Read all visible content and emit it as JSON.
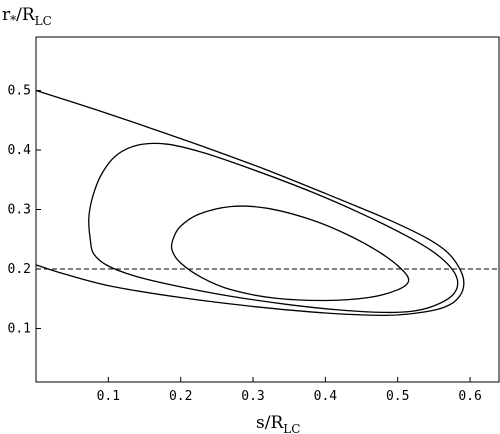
{
  "chart_data": {
    "type": "line",
    "xlabel": {
      "main": "s/R",
      "sub": "LC"
    },
    "ylabel": {
      "main": "r",
      "star": "*",
      "slash": "/R",
      "sub": "LC"
    },
    "xlim": [
      0,
      0.64
    ],
    "ylim": [
      0.01,
      0.59
    ],
    "x_ticks": [
      0.1,
      0.2,
      0.3,
      0.4,
      0.5,
      0.6
    ],
    "x_tick_labels": [
      "0.1",
      "0.2",
      "0.3",
      "0.4",
      "0.5",
      "0.6"
    ],
    "y_ticks": [
      0.1,
      0.2,
      0.3,
      0.4,
      0.5
    ],
    "y_tick_labels": [
      "0.1",
      "0.2",
      "0.3",
      "0.4",
      "0.5"
    ],
    "grid": false,
    "frame": true,
    "reference_line": {
      "y": 0.2,
      "style": "dashed"
    },
    "series": [
      {
        "closed": false,
        "points": [
          [
            0.0,
            0.5
          ],
          [
            0.08,
            0.469
          ],
          [
            0.16,
            0.436
          ],
          [
            0.24,
            0.402
          ],
          [
            0.32,
            0.366
          ],
          [
            0.4,
            0.327
          ],
          [
            0.46,
            0.297
          ],
          [
            0.5,
            0.276
          ],
          [
            0.54,
            0.252
          ],
          [
            0.565,
            0.232
          ],
          [
            0.58,
            0.212
          ],
          [
            0.59,
            0.188
          ],
          [
            0.591,
            0.17
          ],
          [
            0.586,
            0.155
          ],
          [
            0.575,
            0.142
          ],
          [
            0.555,
            0.132
          ],
          [
            0.52,
            0.125
          ],
          [
            0.48,
            0.122
          ],
          [
            0.4,
            0.126
          ],
          [
            0.3,
            0.137
          ],
          [
            0.2,
            0.152
          ],
          [
            0.1,
            0.172
          ],
          [
            0.03,
            0.195
          ],
          [
            0.0,
            0.207
          ]
        ]
      },
      {
        "closed": true,
        "points": [
          [
            0.075,
            0.25
          ],
          [
            0.073,
            0.285
          ],
          [
            0.078,
            0.32
          ],
          [
            0.09,
            0.358
          ],
          [
            0.11,
            0.39
          ],
          [
            0.14,
            0.408
          ],
          [
            0.18,
            0.41
          ],
          [
            0.23,
            0.396
          ],
          [
            0.3,
            0.367
          ],
          [
            0.38,
            0.33
          ],
          [
            0.45,
            0.293
          ],
          [
            0.51,
            0.257
          ],
          [
            0.55,
            0.228
          ],
          [
            0.575,
            0.2
          ],
          [
            0.583,
            0.176
          ],
          [
            0.575,
            0.155
          ],
          [
            0.55,
            0.138
          ],
          [
            0.52,
            0.129
          ],
          [
            0.48,
            0.127
          ],
          [
            0.42,
            0.131
          ],
          [
            0.35,
            0.14
          ],
          [
            0.27,
            0.154
          ],
          [
            0.2,
            0.17
          ],
          [
            0.14,
            0.187
          ],
          [
            0.1,
            0.205
          ],
          [
            0.08,
            0.225
          ]
        ]
      },
      {
        "closed": true,
        "points": [
          [
            0.19,
            0.252
          ],
          [
            0.2,
            0.272
          ],
          [
            0.225,
            0.292
          ],
          [
            0.27,
            0.305
          ],
          [
            0.32,
            0.302
          ],
          [
            0.38,
            0.283
          ],
          [
            0.43,
            0.258
          ],
          [
            0.475,
            0.228
          ],
          [
            0.505,
            0.2
          ],
          [
            0.515,
            0.18
          ],
          [
            0.5,
            0.165
          ],
          [
            0.46,
            0.152
          ],
          [
            0.4,
            0.147
          ],
          [
            0.33,
            0.151
          ],
          [
            0.27,
            0.165
          ],
          [
            0.23,
            0.185
          ],
          [
            0.2,
            0.21
          ],
          [
            0.188,
            0.232
          ]
        ]
      }
    ]
  }
}
